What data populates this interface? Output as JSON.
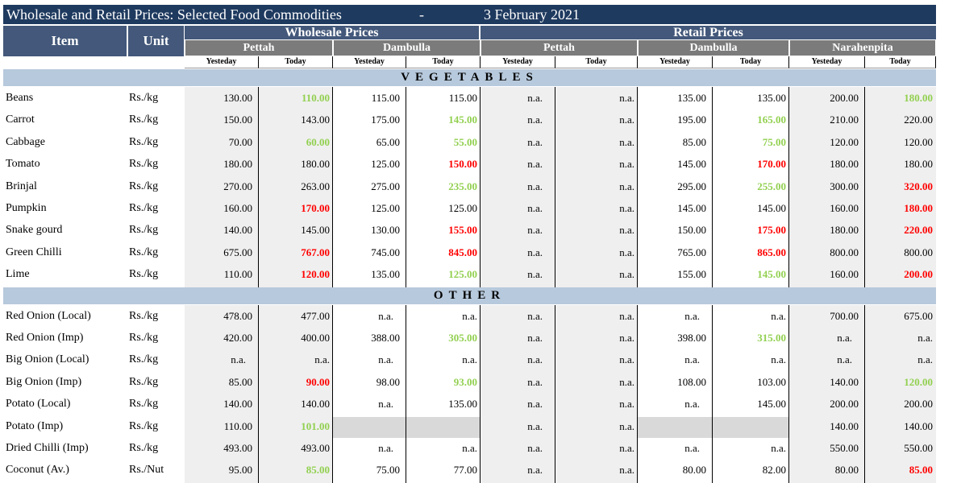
{
  "title": {
    "text": "Wholesale and Retail Prices: Selected Food Commodities",
    "sep": "-",
    "date": "3 February 2021"
  },
  "headers": {
    "item": "Item",
    "unit": "Unit",
    "wholesale": "Wholesale Prices",
    "retail": "Retail Prices",
    "markets": [
      "Pettah",
      "Dambulla",
      "Pettah",
      "Dambulla",
      "Narahenpita"
    ],
    "yesterday": "Yesteday",
    "today": "Today"
  },
  "sections": [
    {
      "name": "VEGETABLES",
      "rows": [
        {
          "item": "Beans",
          "unit": "Rs./kg",
          "v": [
            "130.00",
            "110.00",
            "115.00",
            "115.00",
            "n.a.",
            "n.a.",
            "135.00",
            "135.00",
            "200.00",
            "180.00"
          ],
          "c": [
            "",
            "g",
            "",
            "",
            "",
            "",
            "",
            "",
            "",
            "g"
          ]
        },
        {
          "item": "Carrot",
          "unit": "Rs./kg",
          "v": [
            "150.00",
            "143.00",
            "175.00",
            "145.00",
            "n.a.",
            "n.a.",
            "195.00",
            "165.00",
            "210.00",
            "220.00"
          ],
          "c": [
            "",
            "",
            "",
            "g",
            "",
            "",
            "",
            "g",
            "",
            ""
          ]
        },
        {
          "item": "Cabbage",
          "unit": "Rs./kg",
          "v": [
            "70.00",
            "60.00",
            "65.00",
            "55.00",
            "n.a.",
            "n.a.",
            "85.00",
            "75.00",
            "120.00",
            "120.00"
          ],
          "c": [
            "",
            "g",
            "",
            "g",
            "",
            "",
            "",
            "g",
            "",
            ""
          ]
        },
        {
          "item": "Tomato",
          "unit": "Rs./kg",
          "v": [
            "180.00",
            "180.00",
            "125.00",
            "150.00",
            "n.a.",
            "n.a.",
            "145.00",
            "170.00",
            "180.00",
            "180.00"
          ],
          "c": [
            "",
            "",
            "",
            "r",
            "",
            "",
            "",
            "r",
            "",
            ""
          ]
        },
        {
          "item": "Brinjal",
          "unit": "Rs./kg",
          "v": [
            "270.00",
            "263.00",
            "275.00",
            "235.00",
            "n.a.",
            "n.a.",
            "295.00",
            "255.00",
            "300.00",
            "320.00"
          ],
          "c": [
            "",
            "",
            "",
            "g",
            "",
            "",
            "",
            "g",
            "",
            "r"
          ]
        },
        {
          "item": "Pumpkin",
          "unit": "Rs./kg",
          "v": [
            "160.00",
            "170.00",
            "125.00",
            "125.00",
            "n.a.",
            "n.a.",
            "145.00",
            "145.00",
            "160.00",
            "180.00"
          ],
          "c": [
            "",
            "r",
            "",
            "",
            "",
            "",
            "",
            "",
            "",
            "r"
          ]
        },
        {
          "item": "Snake gourd",
          "unit": "Rs./kg",
          "v": [
            "140.00",
            "145.00",
            "130.00",
            "155.00",
            "n.a.",
            "n.a.",
            "150.00",
            "175.00",
            "180.00",
            "220.00"
          ],
          "c": [
            "",
            "",
            "",
            "r",
            "",
            "",
            "",
            "r",
            "",
            "r"
          ]
        },
        {
          "item": "Green Chilli",
          "unit": "Rs./kg",
          "v": [
            "675.00",
            "767.00",
            "745.00",
            "845.00",
            "n.a.",
            "n.a.",
            "765.00",
            "865.00",
            "800.00",
            "800.00"
          ],
          "c": [
            "",
            "r",
            "",
            "r",
            "",
            "",
            "",
            "r",
            "",
            ""
          ]
        },
        {
          "item": "Lime",
          "unit": "Rs./kg",
          "v": [
            "110.00",
            "120.00",
            "135.00",
            "125.00",
            "n.a.",
            "n.a.",
            "155.00",
            "145.00",
            "160.00",
            "200.00"
          ],
          "c": [
            "",
            "r",
            "",
            "g",
            "",
            "",
            "",
            "g",
            "",
            "r"
          ]
        }
      ]
    },
    {
      "name": "OTHER",
      "rows": [
        {
          "item": "Red Onion (Local)",
          "unit": "Rs./kg",
          "v": [
            "478.00",
            "477.00",
            "n.a.",
            "n.a.",
            "n.a.",
            "n.a.",
            "n.a.",
            "n.a.",
            "700.00",
            "675.00"
          ],
          "c": [
            "",
            "",
            "",
            "",
            "",
            "",
            "",
            "",
            "",
            ""
          ]
        },
        {
          "item": "Red Onion (Imp)",
          "unit": "Rs./kg",
          "v": [
            "420.00",
            "400.00",
            "388.00",
            "305.00",
            "n.a.",
            "n.a.",
            "398.00",
            "315.00",
            "n.a.",
            "n.a."
          ],
          "c": [
            "",
            "",
            "",
            "g",
            "",
            "",
            "",
            "g",
            "",
            ""
          ]
        },
        {
          "item": "Big Onion (Local)",
          "unit": "Rs./kg",
          "v": [
            "n.a.",
            "n.a.",
            "n.a.",
            "n.a.",
            "n.a.",
            "n.a.",
            "n.a.",
            "n.a.",
            "n.a.",
            "n.a."
          ],
          "c": [
            "",
            "",
            "",
            "",
            "",
            "",
            "",
            "",
            "",
            ""
          ]
        },
        {
          "item": "Big Onion (Imp)",
          "unit": "Rs./kg",
          "v": [
            "85.00",
            "90.00",
            "98.00",
            "93.00",
            "n.a.",
            "n.a.",
            "108.00",
            "103.00",
            "140.00",
            "120.00"
          ],
          "c": [
            "",
            "r",
            "",
            "g",
            "",
            "",
            "",
            "",
            "",
            "g"
          ]
        },
        {
          "item": "Potato (Local)",
          "unit": "Rs./kg",
          "v": [
            "140.00",
            "140.00",
            "n.a.",
            "135.00",
            "n.a.",
            "n.a.",
            "n.a.",
            "145.00",
            "200.00",
            "200.00"
          ],
          "c": [
            "",
            "",
            "",
            "",
            "",
            "",
            "",
            "",
            "",
            ""
          ]
        },
        {
          "item": "Potato (Imp)",
          "unit": "Rs./kg",
          "v": [
            "110.00",
            "101.00",
            "",
            "",
            "n.a.",
            "n.a.",
            "",
            "",
            "140.00",
            "140.00"
          ],
          "c": [
            "",
            "g",
            "",
            "",
            "",
            "",
            "",
            "",
            "",
            ""
          ],
          "grey": [
            2,
            3,
            6,
            7
          ]
        },
        {
          "item": "Dried Chilli (Imp)",
          "unit": "Rs./kg",
          "v": [
            "493.00",
            "493.00",
            "n.a.",
            "n.a.",
            "n.a.",
            "n.a.",
            "n.a.",
            "n.a.",
            "550.00",
            "550.00"
          ],
          "c": [
            "",
            "",
            "",
            "",
            "",
            "",
            "",
            "",
            "",
            ""
          ]
        },
        {
          "item": "Coconut (Av.)",
          "unit": "Rs./Nut",
          "v": [
            "95.00",
            "85.00",
            "75.00",
            "77.00",
            "n.a.",
            "n.a.",
            "80.00",
            "82.00",
            "80.00",
            "85.00"
          ],
          "c": [
            "",
            "g",
            "",
            "",
            "",
            "",
            "",
            "",
            "",
            "r"
          ]
        }
      ]
    }
  ]
}
